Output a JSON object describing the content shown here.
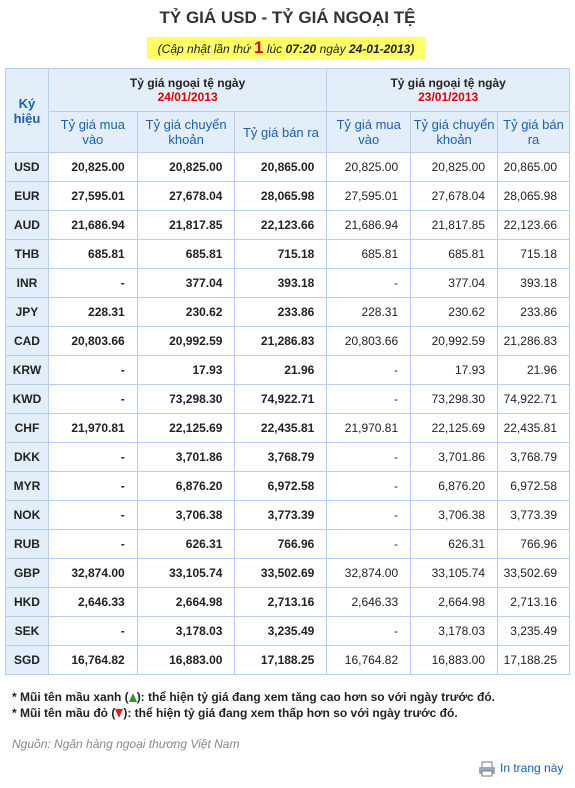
{
  "header": {
    "title": "TỶ GIÁ USD - TỶ GIÁ NGOẠI TỆ",
    "update": [
      "(Cập nhật lần thứ",
      "1",
      "lúc",
      "07:20",
      "ngày",
      "24-01-2013)"
    ]
  },
  "table": {
    "symbol_header": "Ký hiệu",
    "groups": [
      {
        "label": "Tỷ giá ngoại tệ ngày",
        "date": "24/01/2013",
        "columns": [
          "Tỷ giá mua vào",
          "Tỷ giá chuyển khoản",
          "Tỷ giá bán ra"
        ]
      },
      {
        "label": "Tỷ giá ngoại tệ ngày",
        "date": "23/01/2013",
        "columns": [
          "Tỷ giá mua vào",
          "Tỷ giá chuyển khoản",
          "Tỷ giá bán ra"
        ]
      }
    ],
    "rows": [
      [
        "USD",
        "20,825.00",
        "20,825.00",
        "20,865.00",
        "20,825.00",
        "20,825.00",
        "20,865.00"
      ],
      [
        "EUR",
        "27,595.01",
        "27,678.04",
        "28,065.98",
        "27,595.01",
        "27,678.04",
        "28,065.98"
      ],
      [
        "AUD",
        "21,686.94",
        "21,817.85",
        "22,123.66",
        "21,686.94",
        "21,817.85",
        "22,123.66"
      ],
      [
        "THB",
        "685.81",
        "685.81",
        "715.18",
        "685.81",
        "685.81",
        "715.18"
      ],
      [
        "INR",
        "-",
        "377.04",
        "393.18",
        "-",
        "377.04",
        "393.18"
      ],
      [
        "JPY",
        "228.31",
        "230.62",
        "233.86",
        "228.31",
        "230.62",
        "233.86"
      ],
      [
        "CAD",
        "20,803.66",
        "20,992.59",
        "21,286.83",
        "20,803.66",
        "20,992.59",
        "21,286.83"
      ],
      [
        "KRW",
        "-",
        "17.93",
        "21.96",
        "-",
        "17.93",
        "21.96"
      ],
      [
        "KWD",
        "-",
        "73,298.30",
        "74,922.71",
        "-",
        "73,298.30",
        "74,922.71"
      ],
      [
        "CHF",
        "21,970.81",
        "22,125.69",
        "22,435.81",
        "21,970.81",
        "22,125.69",
        "22,435.81"
      ],
      [
        "DKK",
        "-",
        "3,701.86",
        "3,768.79",
        "-",
        "3,701.86",
        "3,768.79"
      ],
      [
        "MYR",
        "-",
        "6,876.20",
        "6,972.58",
        "-",
        "6,876.20",
        "6,972.58"
      ],
      [
        "NOK",
        "-",
        "3,706.38",
        "3,773.39",
        "-",
        "3,706.38",
        "3,773.39"
      ],
      [
        "RUB",
        "-",
        "626.31",
        "766.96",
        "-",
        "626.31",
        "766.96"
      ],
      [
        "GBP",
        "32,874.00",
        "33,105.74",
        "33,502.69",
        "32,874.00",
        "33,105.74",
        "33,502.69"
      ],
      [
        "HKD",
        "2,646.33",
        "2,664.98",
        "2,713.16",
        "2,646.33",
        "2,664.98",
        "2,713.16"
      ],
      [
        "SEK",
        "-",
        "3,178.03",
        "3,235.49",
        "-",
        "3,178.03",
        "3,235.49"
      ],
      [
        "SGD",
        "16,764.82",
        "16,883.00",
        "17,188.25",
        "16,764.82",
        "16,883.00",
        "17,188.25"
      ]
    ]
  },
  "notes": [
    {
      "before": "* Mũi tên mầu xanh (",
      "after": "): thể hiện tỷ giá đang xem tăng cao hơn so với ngày trước đó."
    },
    {
      "before": "* Mũi tên mầu đỏ (",
      "after": "): thể hiện tỷ giá đang xem thấp hơn so với ngày trước đó."
    }
  ],
  "source": "Nguồn: Ngân hàng ngoại thương Việt Nam",
  "print": "In trang này"
}
